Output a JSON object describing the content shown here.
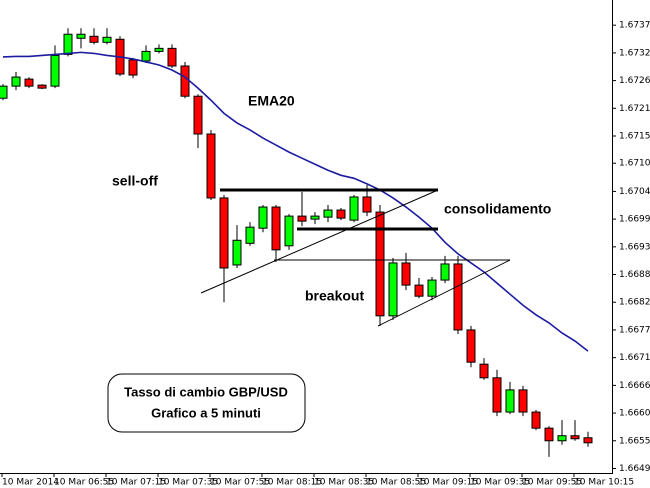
{
  "chart_data": {
    "type": "candlestick",
    "categories": [
      "10 Mar 2014",
      null,
      null,
      null,
      "10 Mar 06:55",
      null,
      null,
      null,
      "10 Mar 07:15",
      null,
      null,
      null,
      "10 Mar 07:35",
      null,
      null,
      null,
      "10 Mar 07:55",
      null,
      null,
      null,
      "10 Mar 08:15",
      null,
      null,
      null,
      "10 Mar 08:35",
      null,
      null,
      null,
      "10 Mar 08:55",
      null,
      null,
      null,
      "10 Mar 09:15",
      null,
      null,
      null,
      "10 Mar 09:35",
      null,
      null,
      null,
      "10 Mar 09:55",
      null,
      null,
      null,
      "10 Mar 10:15",
      null
    ],
    "open": [
      1.6723,
      1.67254,
      1.67268,
      1.67256,
      1.67254,
      1.67317,
      1.67349,
      1.67353,
      1.67341,
      1.67347,
      1.67306,
      1.67304,
      1.67323,
      1.67329,
      1.67294,
      1.67234,
      1.67159,
      1.67032,
      1.66899,
      1.66942,
      1.66972,
      1.67014,
      1.66937,
      1.66996,
      1.6699,
      1.66994,
      1.67008,
      1.66988,
      1.67034,
      1.67004,
      1.66798,
      1.66903,
      1.66859,
      1.66837,
      1.66869,
      1.66901,
      1.6677,
      1.66702,
      1.66675,
      1.66607,
      1.66651,
      1.66607,
      1.66575,
      1.6655,
      1.6656,
      1.66556
    ],
    "high": [
      1.67258,
      1.67282,
      1.67272,
      1.67258,
      1.67335,
      1.67369,
      1.67369,
      1.67369,
      1.67369,
      1.67353,
      1.6731,
      1.67335,
      1.67337,
      1.67337,
      1.67302,
      1.67238,
      1.67167,
      1.67038,
      1.66978,
      1.66984,
      1.67018,
      1.67018,
      1.67,
      1.67044,
      1.67004,
      1.67018,
      1.67012,
      1.67038,
      1.67058,
      1.67018,
      1.66913,
      1.66923,
      1.66873,
      1.66875,
      1.66917,
      1.66917,
      1.66778,
      1.66714,
      1.66691,
      1.66667,
      1.66659,
      1.66611,
      1.66579,
      1.66591,
      1.66591,
      1.66568
    ],
    "low": [
      1.67226,
      1.67246,
      1.6725,
      1.67248,
      1.6725,
      1.67313,
      1.67329,
      1.67337,
      1.67337,
      1.67274,
      1.6727,
      1.673,
      1.67319,
      1.6729,
      1.6723,
      1.67131,
      1.67028,
      1.66825,
      1.66893,
      1.66937,
      1.66964,
      1.66905,
      1.66929,
      1.66976,
      1.6698,
      1.66984,
      1.66988,
      1.66984,
      1.66996,
      1.66778,
      1.6679,
      1.66849,
      1.66833,
      1.66829,
      1.66863,
      1.66762,
      1.66696,
      1.66671,
      1.66599,
      1.66603,
      1.66599,
      1.66571,
      1.66518,
      1.66542,
      1.6655,
      1.66538
    ],
    "close": [
      1.67254,
      1.67272,
      1.67254,
      1.6725,
      1.67315,
      1.67357,
      1.67357,
      1.67341,
      1.67351,
      1.67278,
      1.67276,
      1.67323,
      1.67329,
      1.67294,
      1.67234,
      1.67159,
      1.67032,
      1.66893,
      1.66948,
      1.66974,
      1.67014,
      1.66929,
      1.66996,
      1.66986,
      1.66996,
      1.67008,
      1.66992,
      1.67034,
      1.67004,
      1.66798,
      1.66903,
      1.66859,
      1.66837,
      1.66869,
      1.66901,
      1.6677,
      1.66706,
      1.66675,
      1.66607,
      1.66651,
      1.66607,
      1.66575,
      1.6655,
      1.6656,
      1.66554,
      1.66546
    ],
    "up_color": "#00ff00",
    "down_color": "#ff0000",
    "ema": {
      "name": "EMA20",
      "color": "#1c1ca0",
      "values": [
        1.67312,
        1.67313,
        1.67313,
        1.67315,
        1.67317,
        1.67319,
        1.67321,
        1.67319,
        1.67315,
        1.67312,
        1.67308,
        1.67302,
        1.67296,
        1.67286,
        1.67272,
        1.6725,
        1.67226,
        1.672,
        1.67181,
        1.67167,
        1.67151,
        1.67137,
        1.67123,
        1.67111,
        1.67099,
        1.67087,
        1.67077,
        1.67071,
        1.6706,
        1.67048,
        1.67032,
        1.67014,
        1.66994,
        1.66972,
        1.66944,
        1.66921,
        1.66903,
        1.66885,
        1.66863,
        1.66841,
        1.66819,
        1.668,
        1.66784,
        1.66764,
        1.66748,
        1.66728
      ]
    },
    "annotations": [
      "sell-off",
      "consolidamento",
      "breakout"
    ],
    "box_text": [
      "Tasso di cambio GBP/USD",
      "Grafico a 5 minuti"
    ],
    "ylim": [
      1.66486,
      1.67425
    ],
    "yticks": [
      {
        "value": 1.67375,
        "label": "1.67375"
      },
      {
        "value": 1.6732,
        "label": "1.67320"
      },
      {
        "value": 1.67265,
        "label": "1.67265"
      },
      {
        "value": 1.6721,
        "label": "1.67210"
      },
      {
        "value": 1.67155,
        "label": "1.67155"
      },
      {
        "value": 1.67101,
        "label": "1.67101"
      },
      {
        "value": 1.67045,
        "label": "1.67045"
      },
      {
        "value": 1.6699,
        "label": "1.66990"
      },
      {
        "value": 1.66935,
        "label": "1.66935"
      },
      {
        "value": 1.6688,
        "label": "1.66880"
      },
      {
        "value": 1.66825,
        "label": "1.66825"
      },
      {
        "value": 1.6677,
        "label": "1.66770"
      },
      {
        "value": 1.66715,
        "label": "1.66715"
      },
      {
        "value": 1.6666,
        "label": "1.66660"
      },
      {
        "value": 1.66605,
        "label": "1.66605"
      },
      {
        "value": 1.6655,
        "label": "1.66550"
      },
      {
        "value": 1.66495,
        "label": "1.66495"
      }
    ]
  }
}
